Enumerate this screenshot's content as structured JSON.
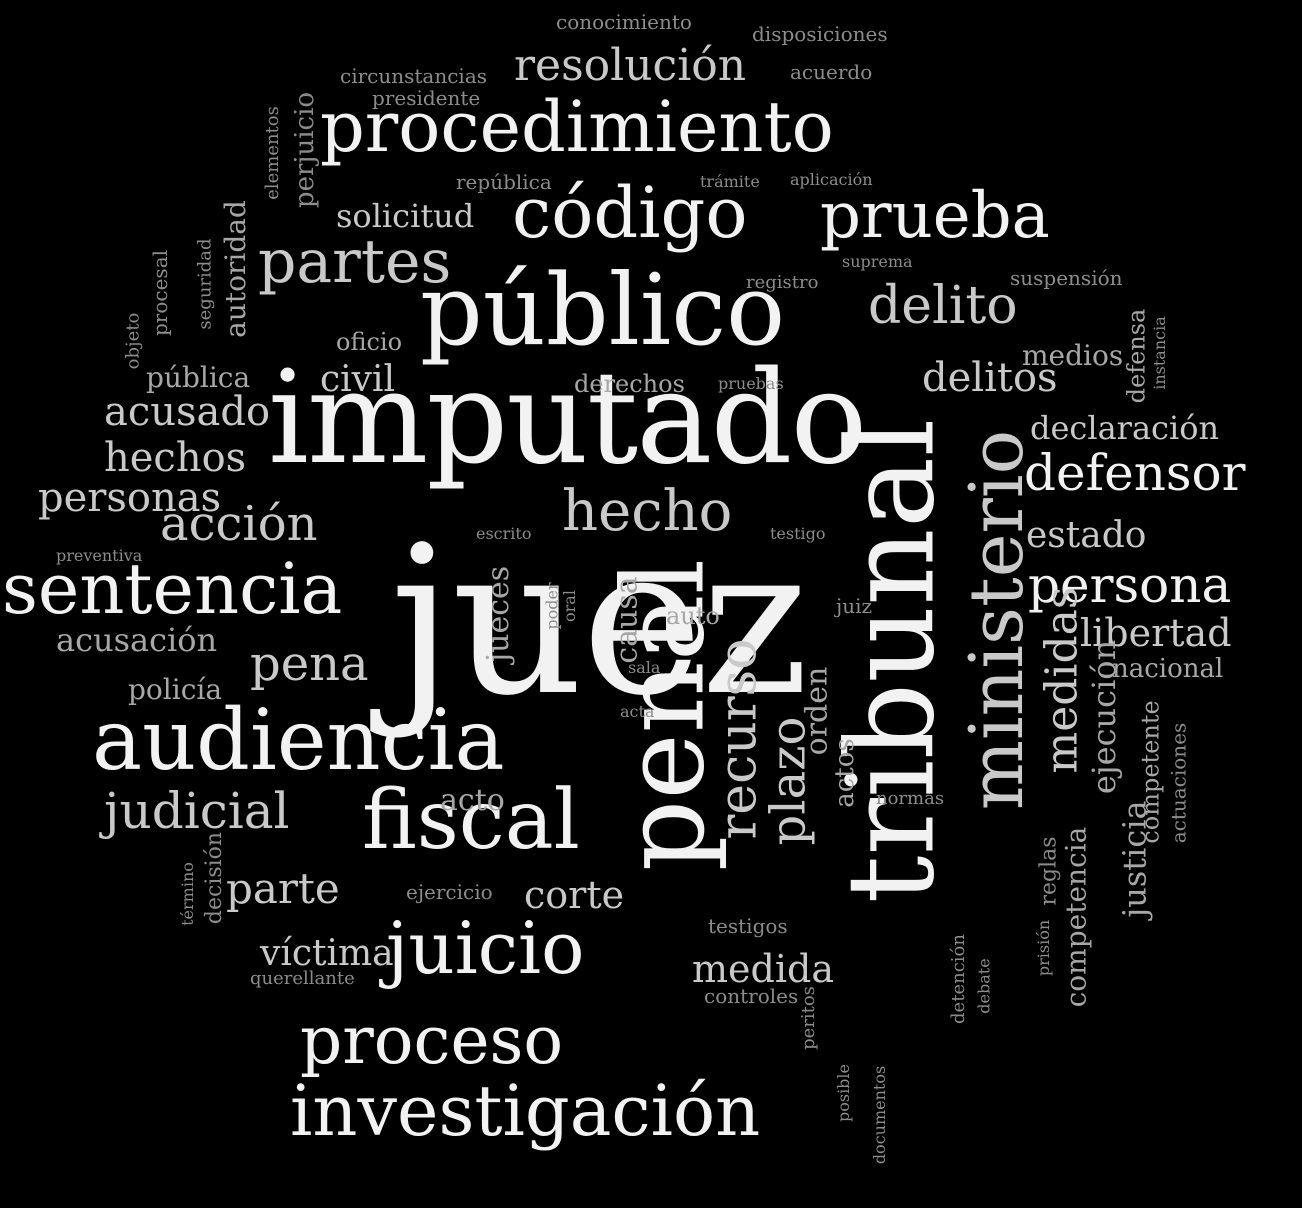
{
  "colors": {
    "background": "#000000",
    "text_strong": "#f2f2f2",
    "text_mid": "#c9c9c9",
    "text_soft": "#a7a7a7",
    "text_faint": "#8c8c8c"
  },
  "words": [
    {
      "text": "juez",
      "weight": 100
    },
    {
      "text": "imputado",
      "weight": 92
    },
    {
      "text": "tribunal",
      "weight": 88
    },
    {
      "text": "penal",
      "weight": 82
    },
    {
      "text": "público",
      "weight": 68
    },
    {
      "text": "ministerio",
      "weight": 62
    },
    {
      "text": "audiencia",
      "weight": 58
    },
    {
      "text": "fiscal",
      "weight": 56
    },
    {
      "text": "procedimiento",
      "weight": 54
    },
    {
      "text": "código",
      "weight": 52
    },
    {
      "text": "sentencia",
      "weight": 52
    },
    {
      "text": "investigación",
      "weight": 52
    },
    {
      "text": "juicio",
      "weight": 50
    },
    {
      "text": "prueba",
      "weight": 48
    },
    {
      "text": "proceso",
      "weight": 48
    },
    {
      "text": "recurso",
      "weight": 40
    },
    {
      "text": "partes",
      "weight": 42
    },
    {
      "text": "hecho",
      "weight": 38
    },
    {
      "text": "persona",
      "weight": 37
    },
    {
      "text": "delito",
      "weight": 36
    },
    {
      "text": "defensor",
      "weight": 36
    },
    {
      "text": "judicial",
      "weight": 36
    },
    {
      "text": "medidas",
      "weight": 34
    },
    {
      "text": "acción",
      "weight": 33
    },
    {
      "text": "pena",
      "weight": 32
    },
    {
      "text": "plazo",
      "weight": 32
    },
    {
      "text": "resolución",
      "weight": 32
    },
    {
      "text": "parte",
      "weight": 30
    },
    {
      "text": "medida",
      "weight": 29
    },
    {
      "text": "delitos",
      "weight": 29
    },
    {
      "text": "libertad",
      "weight": 28
    },
    {
      "text": "personas",
      "weight": 28
    },
    {
      "text": "hechos",
      "weight": 27
    },
    {
      "text": "acusado",
      "weight": 27
    },
    {
      "text": "ejecución",
      "weight": 27
    },
    {
      "text": "jueces",
      "weight": 26
    },
    {
      "text": "corte",
      "weight": 25
    },
    {
      "text": "civil",
      "weight": 25
    },
    {
      "text": "orden",
      "weight": 24
    },
    {
      "text": "víctima",
      "weight": 24
    },
    {
      "text": "declaración",
      "weight": 24
    },
    {
      "text": "estado",
      "weight": 24
    },
    {
      "text": "solicitud",
      "weight": 23
    },
    {
      "text": "acusación",
      "weight": 23
    },
    {
      "text": "medios",
      "weight": 22
    },
    {
      "text": "justicia",
      "weight": 22
    },
    {
      "text": "autoridad",
      "weight": 22
    },
    {
      "text": "competencia",
      "weight": 22
    },
    {
      "text": "causa",
      "weight": 21
    },
    {
      "text": "acto",
      "weight": 21
    },
    {
      "text": "policía",
      "weight": 21
    },
    {
      "text": "pública",
      "weight": 21
    },
    {
      "text": "actos",
      "weight": 20
    },
    {
      "text": "nacional",
      "weight": 20
    },
    {
      "text": "competente",
      "weight": 20
    },
    {
      "text": "derechos",
      "weight": 19
    },
    {
      "text": "defensa",
      "weight": 19
    },
    {
      "text": "oficio",
      "weight": 19
    },
    {
      "text": "perjuicio",
      "weight": 19
    },
    {
      "text": "decisión",
      "weight": 18
    },
    {
      "text": "auto",
      "weight": 18
    },
    {
      "text": "reglas",
      "weight": 18
    },
    {
      "text": "actuaciones",
      "weight": 17
    },
    {
      "text": "procesal",
      "weight": 17
    },
    {
      "text": "conocimiento",
      "weight": 16
    },
    {
      "text": "presidente",
      "weight": 16
    },
    {
      "text": "república",
      "weight": 16
    },
    {
      "text": "disposiciones",
      "weight": 16
    },
    {
      "text": "acuerdo",
      "weight": 16
    },
    {
      "text": "circunstancias",
      "weight": 16
    },
    {
      "text": "elementos",
      "weight": 16
    },
    {
      "text": "seguridad",
      "weight": 16
    },
    {
      "text": "objeto",
      "weight": 16
    },
    {
      "text": "suspensión",
      "weight": 16
    },
    {
      "text": "registro",
      "weight": 15
    },
    {
      "text": "testigos",
      "weight": 15
    },
    {
      "text": "controles",
      "weight": 15
    },
    {
      "text": "detención",
      "weight": 15
    },
    {
      "text": "ejercicio",
      "weight": 15
    },
    {
      "text": "querellante",
      "weight": 15
    },
    {
      "text": "normas",
      "weight": 15
    },
    {
      "text": "juiz",
      "weight": 15
    },
    {
      "text": "peritos",
      "weight": 14
    },
    {
      "text": "trámite",
      "weight": 14
    },
    {
      "text": "aplicación",
      "weight": 14
    },
    {
      "text": "suprema",
      "weight": 14
    },
    {
      "text": "pruebas",
      "weight": 14
    },
    {
      "text": "instancia",
      "weight": 14
    },
    {
      "text": "prisión",
      "weight": 14
    },
    {
      "text": "debate",
      "weight": 14
    },
    {
      "text": "término",
      "weight": 13
    },
    {
      "text": "preventiva",
      "weight": 13
    },
    {
      "text": "escrito",
      "weight": 13
    },
    {
      "text": "testigo",
      "weight": 13
    },
    {
      "text": "poder",
      "weight": 13
    },
    {
      "text": "oral",
      "weight": 13
    },
    {
      "text": "sala",
      "weight": 13
    },
    {
      "text": "acta",
      "weight": 13
    },
    {
      "text": "posible",
      "weight": 12
    },
    {
      "text": "documentos",
      "weight": 12
    }
  ]
}
